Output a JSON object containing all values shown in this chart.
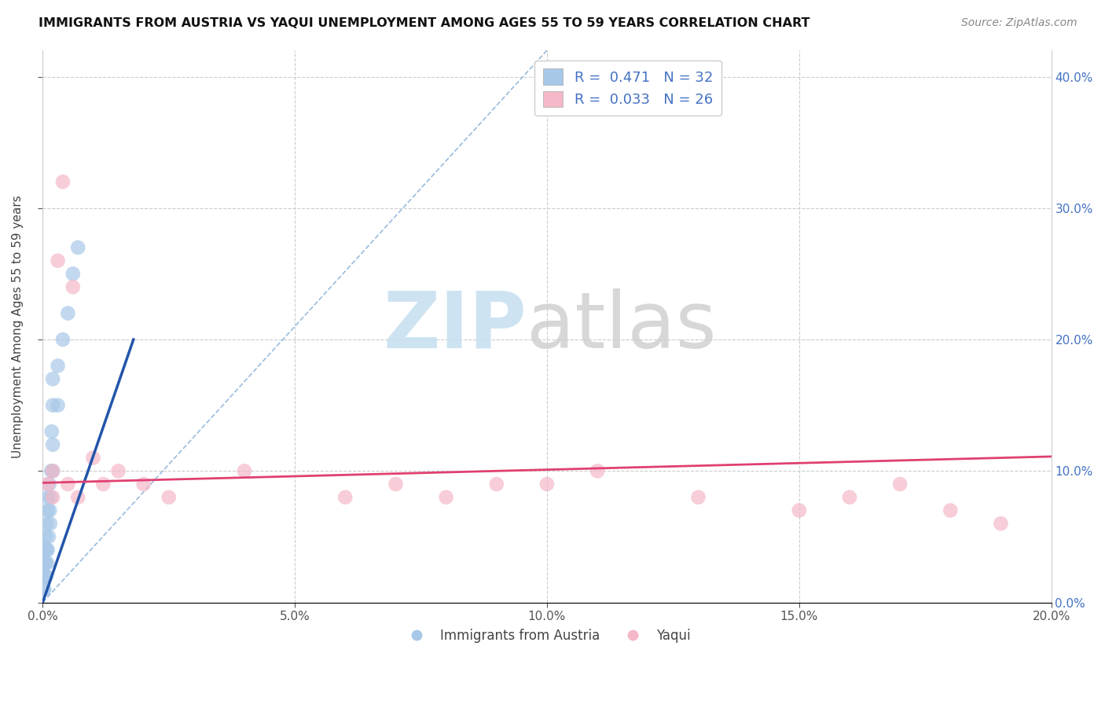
{
  "title": "IMMIGRANTS FROM AUSTRIA VS YAQUI UNEMPLOYMENT AMONG AGES 55 TO 59 YEARS CORRELATION CHART",
  "source": "Source: ZipAtlas.com",
  "ylabel": "Unemployment Among Ages 55 to 59 years",
  "xlabel": "",
  "legend_labels": [
    "Immigrants from Austria",
    "Yaqui"
  ],
  "series1_R": 0.471,
  "series1_N": 32,
  "series2_R": 0.033,
  "series2_N": 26,
  "color_blue": "#a8c8e8",
  "color_pink": "#f4b8c8",
  "trend_blue": "#2255aa",
  "trend_pink": "#e04070",
  "refline_color": "#99bbdd",
  "xlim": [
    0.0,
    0.2
  ],
  "ylim": [
    0.0,
    0.42
  ],
  "xticks": [
    0.0,
    0.05,
    0.1,
    0.15,
    0.2
  ],
  "yticks": [
    0.0,
    0.1,
    0.2,
    0.3,
    0.4
  ],
  "background": "#ffffff",
  "grid_color": "#cccccc",
  "austria_x": [
    0.0002,
    0.0003,
    0.0004,
    0.0004,
    0.0005,
    0.0005,
    0.0006,
    0.0006,
    0.0007,
    0.0008,
    0.0008,
    0.0009,
    0.001,
    0.001,
    0.001,
    0.0012,
    0.0013,
    0.0014,
    0.0015,
    0.0016,
    0.0017,
    0.0018,
    0.002,
    0.002,
    0.002,
    0.002,
    0.003,
    0.003,
    0.004,
    0.005,
    0.006,
    0.007
  ],
  "austria_y": [
    0.01,
    0.01,
    0.02,
    0.03,
    0.02,
    0.04,
    0.03,
    0.05,
    0.02,
    0.04,
    0.06,
    0.03,
    0.04,
    0.07,
    0.08,
    0.05,
    0.09,
    0.07,
    0.06,
    0.08,
    0.1,
    0.13,
    0.15,
    0.17,
    0.12,
    0.1,
    0.15,
    0.18,
    0.2,
    0.22,
    0.25,
    0.27
  ],
  "yaqui_x": [
    0.001,
    0.002,
    0.002,
    0.003,
    0.004,
    0.005,
    0.006,
    0.007,
    0.01,
    0.012,
    0.015,
    0.02,
    0.025,
    0.04,
    0.06,
    0.07,
    0.08,
    0.09,
    0.1,
    0.11,
    0.13,
    0.15,
    0.16,
    0.17,
    0.18,
    0.19
  ],
  "yaqui_y": [
    0.09,
    0.1,
    0.08,
    0.26,
    0.32,
    0.09,
    0.24,
    0.08,
    0.11,
    0.09,
    0.1,
    0.09,
    0.08,
    0.1,
    0.08,
    0.09,
    0.08,
    0.09,
    0.09,
    0.1,
    0.08,
    0.07,
    0.08,
    0.09,
    0.07,
    0.06
  ],
  "trend_blue_x0": 0.0,
  "trend_blue_y0": 0.0,
  "trend_blue_x1": 0.018,
  "trend_blue_y1": 0.2,
  "trend_pink_x0": 0.0,
  "trend_pink_y0": 0.091,
  "trend_pink_x1": 0.2,
  "trend_pink_y1": 0.111,
  "refline_x0": 0.0,
  "refline_y0": 0.0,
  "refline_x1": 0.1,
  "refline_y1": 0.42
}
